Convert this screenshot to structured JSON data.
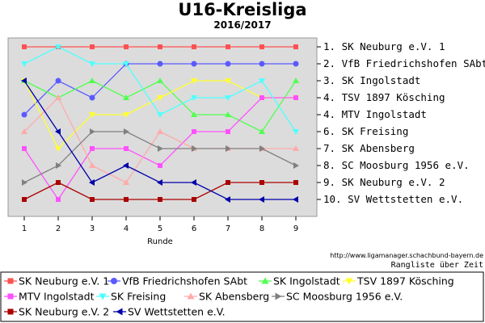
{
  "chart_data": {
    "type": "line",
    "title": "U16-Kreisliga",
    "subtitle": "2016/2017",
    "xlabel": "Runde",
    "ylabel": "",
    "x": [
      1,
      2,
      3,
      4,
      5,
      6,
      7,
      8,
      9
    ],
    "ylim": [
      1,
      10
    ],
    "y_inverted": true,
    "grid": false,
    "rank_labels": [
      "1. SK Neuburg e.V. 1",
      "2. VfB Friedrichshofen SAbt",
      "3. SK Ingolstadt",
      "4. TSV 1897 Kösching",
      "4. MTV Ingolstadt",
      "6. SK Freising",
      "7. SK Abensberg",
      "8. SC Moosburg 1956 e.V.",
      "9. SK Neuburg e.V. 2",
      "10. SV Wettstetten e.V."
    ],
    "source_url": "http://www.ligamanager.schachbund-bayern.de",
    "caption": "Rangliste über Zeit",
    "legend_position": "bottom",
    "series": [
      {
        "name": "SK Neuburg e.V. 1",
        "color": "#ff5050",
        "marker": "square",
        "values": [
          1,
          1,
          1,
          1,
          1,
          1,
          1,
          1,
          1
        ]
      },
      {
        "name": "VfB Friedrichshofen SAbt",
        "color": "#5a5aff",
        "marker": "circle",
        "values": [
          5,
          3,
          4,
          2,
          2,
          2,
          2,
          2,
          2
        ]
      },
      {
        "name": "SK Ingolstadt",
        "color": "#50ff50",
        "marker": "triangle-up",
        "values": [
          3,
          4,
          3,
          4,
          3,
          5,
          5,
          6,
          3
        ]
      },
      {
        "name": "TSV 1897 Kösching",
        "color": "#ffff30",
        "marker": "triangle-down",
        "values": [
          3,
          7,
          5,
          5,
          4,
          3,
          3,
          4,
          4
        ]
      },
      {
        "name": "MTV Ingolstadt",
        "color": "#ff50ff",
        "marker": "square",
        "values": [
          7,
          10,
          7,
          7,
          8,
          6,
          6,
          4,
          4
        ]
      },
      {
        "name": "SK Freising",
        "color": "#50ffff",
        "marker": "triangle-down",
        "values": [
          2,
          1,
          2,
          2,
          5,
          4,
          4,
          3,
          6
        ]
      },
      {
        "name": "SK Abensberg",
        "color": "#ffaaaa",
        "marker": "triangle-up",
        "values": [
          6,
          4,
          8,
          9,
          6,
          7,
          7,
          7,
          7
        ]
      },
      {
        "name": "SC Moosburg 1956 e.V.",
        "color": "#808080",
        "marker": "triangle-right",
        "values": [
          9,
          8,
          6,
          6,
          7,
          7,
          7,
          7,
          8
        ]
      },
      {
        "name": "SK Neuburg e.V. 2",
        "color": "#aa0000",
        "marker": "square",
        "values": [
          10,
          9,
          10,
          10,
          10,
          10,
          9,
          9,
          9
        ]
      },
      {
        "name": "SV Wettstetten e.V.",
        "color": "#0000aa",
        "marker": "triangle-left",
        "values": [
          3,
          6,
          9,
          8,
          9,
          9,
          10,
          10,
          10
        ]
      }
    ]
  }
}
